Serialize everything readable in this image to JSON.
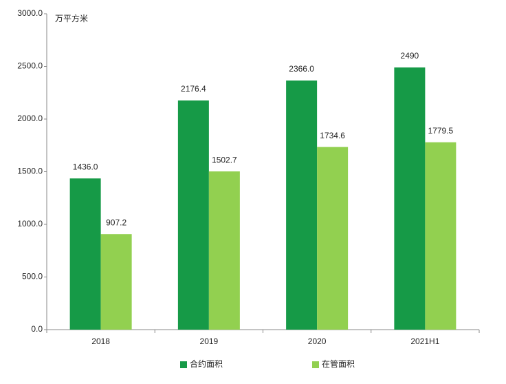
{
  "chart_data": {
    "type": "bar",
    "y_label": "万平方米",
    "categories": [
      "2018",
      "2019",
      "2020",
      "2021H1"
    ],
    "series": [
      {
        "name": "合约面积",
        "color": "#169a47",
        "values": [
          1436,
          2176.4,
          2366,
          2490
        ],
        "value_labels": [
          "1436.0",
          "2176.4",
          "2366.0",
          "2490"
        ]
      },
      {
        "name": "在管面积",
        "color": "#92d050",
        "values": [
          907.2,
          1502.7,
          1734.6,
          1779.5
        ],
        "value_labels": [
          "907.2",
          "1502.7",
          "1734.6",
          "1779.5"
        ]
      }
    ],
    "ylim": [
      0,
      3000
    ],
    "yticks": [
      {
        "value": 0,
        "label": "0.0"
      },
      {
        "value": 500,
        "label": "500.0"
      },
      {
        "value": 1000,
        "label": "1000.0"
      },
      {
        "value": 1500,
        "label": "1500.0"
      },
      {
        "value": 2000,
        "label": "2000.0"
      },
      {
        "value": 2500,
        "label": "2500.0"
      },
      {
        "value": 3000,
        "label": "3000.0"
      }
    ],
    "grid": false,
    "legend": "bottom"
  }
}
